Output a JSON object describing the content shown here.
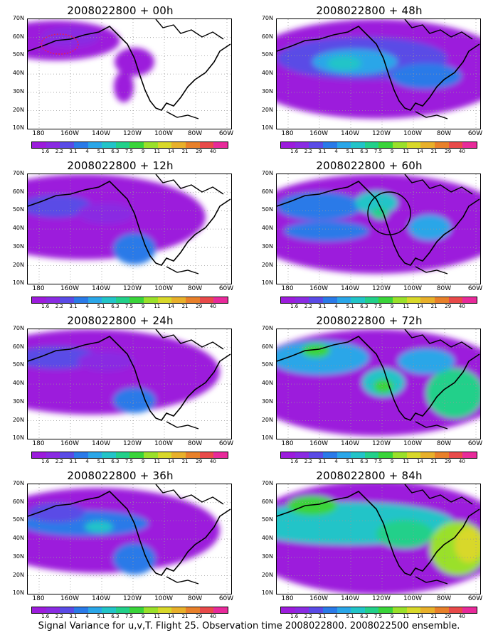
{
  "colors": {
    "scale": [
      "#9c1cdc",
      "#8a2be2",
      "#5a4be6",
      "#2a7ae8",
      "#2aa6e8",
      "#22c4c8",
      "#22d08a",
      "#3ad43a",
      "#9ae02a",
      "#d8d82a",
      "#e8b02a",
      "#e8802a",
      "#e84a4a",
      "#e82a9a"
    ],
    "land_outline": "#000000"
  },
  "panels": [
    {
      "title": "2008022800 + 00h"
    },
    {
      "title": "2008022800 + 48h"
    },
    {
      "title": "2008022800 + 12h"
    },
    {
      "title": "2008022800 + 60h"
    },
    {
      "title": "2008022800 + 24h"
    },
    {
      "title": "2008022800 + 72h"
    },
    {
      "title": "2008022800 + 36h"
    },
    {
      "title": "2008022800 + 84h"
    }
  ],
  "lat_labels": [
    "70N",
    "60N",
    "50N",
    "40N",
    "30N",
    "20N",
    "10N"
  ],
  "lon_labels": [
    "180",
    "160W",
    "140W",
    "120W",
    "100W",
    "80W",
    "60W"
  ],
  "colorbar_labels": [
    "1.6",
    "2.2",
    "3.1",
    "4",
    "5.1",
    "6.3",
    "7.5",
    "9",
    "11",
    "14",
    "21",
    "29",
    "40"
  ],
  "caption": "Signal Variance for u,v,T. Flight 25. Observation time 2008022800. 2008022500 ensemble."
}
